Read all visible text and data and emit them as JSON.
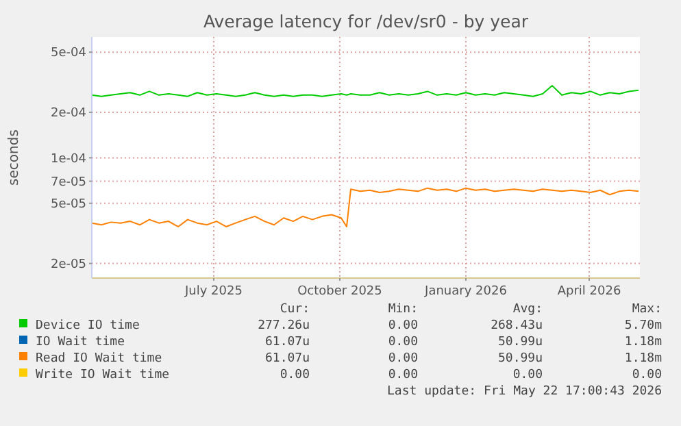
{
  "chart_data": {
    "type": "line",
    "title": "Average latency for /dev/sr0 - by year",
    "ylabel": "seconds",
    "log": "y",
    "grid": true,
    "legend": "bottom",
    "marker": "none",
    "line_style": "solid",
    "x": [
      "2025-04-17",
      "2025-04-24",
      "2025-05-01",
      "2025-05-08",
      "2025-05-15",
      "2025-05-22",
      "2025-05-29",
      "2025-06-05",
      "2025-06-12",
      "2025-06-19",
      "2025-06-26",
      "2025-07-03",
      "2025-07-10",
      "2025-07-17",
      "2025-07-24",
      "2025-07-31",
      "2025-08-07",
      "2025-08-14",
      "2025-08-21",
      "2025-08-28",
      "2025-09-04",
      "2025-09-11",
      "2025-09-18",
      "2025-09-25",
      "2025-10-02",
      "2025-10-09",
      "2025-10-16",
      "2025-10-20",
      "2025-10-23",
      "2025-10-30",
      "2025-11-06",
      "2025-11-13",
      "2025-11-20",
      "2025-11-27",
      "2025-12-04",
      "2025-12-11",
      "2025-12-18",
      "2025-12-25",
      "2026-01-01",
      "2026-01-08",
      "2026-01-15",
      "2026-01-22",
      "2026-01-29",
      "2026-02-05",
      "2026-02-12",
      "2026-02-19",
      "2026-02-26",
      "2026-03-05",
      "2026-03-12",
      "2026-03-19",
      "2026-03-26",
      "2026-04-02",
      "2026-04-09",
      "2026-04-16",
      "2026-04-23",
      "2026-04-30",
      "2026-05-07",
      "2026-05-14",
      "2026-05-21"
    ],
    "xlim": [
      "2025-04-17",
      "2026-05-22"
    ],
    "xticks": [
      {
        "value": "2025-07-15",
        "label": "July 2025"
      },
      {
        "value": "2025-10-15",
        "label": "October 2025"
      },
      {
        "value": "2026-01-15",
        "label": "January 2026"
      },
      {
        "value": "2026-04-15",
        "label": "April 2026"
      }
    ],
    "ylim": [
      1.6e-05,
      0.00063
    ],
    "yticks": [
      {
        "value": 2e-05,
        "label": "2e-05"
      },
      {
        "value": 5e-05,
        "label": "5e-05"
      },
      {
        "value": 7e-05,
        "label": "7e-05"
      },
      {
        "value": 0.0001,
        "label": "1e-04"
      },
      {
        "value": 0.0002,
        "label": "2e-04"
      },
      {
        "value": 0.0005,
        "label": "5e-04"
      }
    ],
    "series": [
      {
        "name": "Device IO time",
        "color": "#00cc00",
        "values": [
          0.00026,
          0.000255,
          0.00026,
          0.000265,
          0.00027,
          0.00026,
          0.000275,
          0.00026,
          0.000265,
          0.00026,
          0.000255,
          0.00027,
          0.00026,
          0.000265,
          0.00026,
          0.000255,
          0.00026,
          0.00027,
          0.00026,
          0.000255,
          0.00026,
          0.000255,
          0.00026,
          0.00026,
          0.000255,
          0.00026,
          0.000265,
          0.00026,
          0.000265,
          0.00026,
          0.00026,
          0.00027,
          0.00026,
          0.000265,
          0.00026,
          0.000265,
          0.000275,
          0.00026,
          0.000265,
          0.00026,
          0.00027,
          0.00026,
          0.000265,
          0.00026,
          0.00027,
          0.000265,
          0.00026,
          0.000255,
          0.000265,
          0.0003,
          0.00026,
          0.00027,
          0.000265,
          0.000275,
          0.00026,
          0.00027,
          0.000265,
          0.000275,
          0.00028
        ]
      },
      {
        "name": "IO Wait time",
        "color": "#0066b3",
        "values": [
          null,
          null,
          null,
          null,
          null,
          null,
          null,
          null,
          null,
          null,
          null,
          null,
          null,
          null,
          null,
          null,
          null,
          null,
          null,
          null,
          null,
          null,
          null,
          null,
          null,
          null,
          null,
          null,
          null,
          null,
          null,
          null,
          null,
          null,
          null,
          null,
          null,
          null,
          null,
          null,
          null,
          null,
          null,
          null,
          null,
          null,
          null,
          null,
          null,
          null,
          null,
          null,
          null,
          null,
          null,
          null,
          null,
          null,
          null
        ]
      },
      {
        "name": "Read IO Wait time",
        "color": "#ff8000",
        "values": [
          3.7e-05,
          3.6e-05,
          3.75e-05,
          3.7e-05,
          3.8e-05,
          3.6e-05,
          3.9e-05,
          3.7e-05,
          3.8e-05,
          3.5e-05,
          3.9e-05,
          3.7e-05,
          3.6e-05,
          3.8e-05,
          3.5e-05,
          3.7e-05,
          3.9e-05,
          4.1e-05,
          3.8e-05,
          3.6e-05,
          4e-05,
          3.8e-05,
          4.1e-05,
          3.9e-05,
          4.1e-05,
          4.2e-05,
          4e-05,
          3.5e-05,
          6.2e-05,
          6e-05,
          6.1e-05,
          5.9e-05,
          6e-05,
          6.2e-05,
          6.1e-05,
          6e-05,
          6.3e-05,
          6.1e-05,
          6.2e-05,
          6e-05,
          6.3e-05,
          6.1e-05,
          6.2e-05,
          6e-05,
          6.1e-05,
          6.2e-05,
          6.1e-05,
          6e-05,
          6.2e-05,
          6.1e-05,
          6e-05,
          6.1e-05,
          6e-05,
          5.9e-05,
          6.1e-05,
          5.7e-05,
          6e-05,
          6.1e-05,
          6e-05
        ]
      },
      {
        "name": "Write IO Wait time",
        "color": "#ffcc00",
        "values": [
          null,
          null,
          null,
          null,
          null,
          null,
          null,
          null,
          null,
          null,
          null,
          null,
          null,
          null,
          null,
          null,
          null,
          null,
          null,
          null,
          null,
          null,
          null,
          null,
          null,
          null,
          null,
          null,
          null,
          null,
          null,
          null,
          null,
          null,
          null,
          null,
          null,
          null,
          null,
          null,
          null,
          null,
          null,
          null,
          null,
          null,
          null,
          null,
          null,
          null,
          null,
          null,
          null,
          null,
          null,
          null,
          null,
          null,
          null
        ]
      }
    ],
    "annotations": [
      "Cur:",
      "Min:",
      "Avg:",
      "Max:",
      "277.26u",
      "0.00",
      "268.43u",
      "5.70m",
      "61.07u",
      "0.00",
      "50.99u",
      "1.18m",
      "61.07u",
      "0.00",
      "50.99u",
      "1.18m",
      "0.00",
      "0.00",
      "0.00",
      "0.00",
      "Last update: Fri May 22 17:00:43 2026"
    ]
  }
}
